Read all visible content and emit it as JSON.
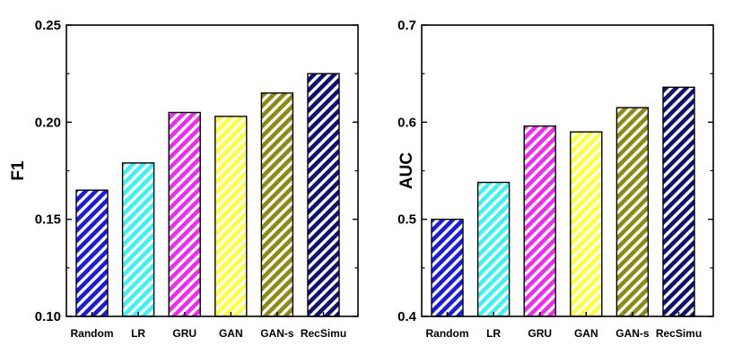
{
  "chart_data": [
    {
      "type": "bar",
      "title": "",
      "xlabel": "",
      "ylabel": "F1",
      "categories": [
        "Random",
        "LR",
        "GRU",
        "GAN",
        "GAN-s",
        "RecSimu"
      ],
      "values": [
        0.165,
        0.179,
        0.205,
        0.203,
        0.215,
        0.225
      ],
      "ylim": [
        0.1,
        0.25
      ],
      "yticks": [
        "0.10",
        "0.15",
        "0.20",
        "0.25"
      ],
      "colors": [
        "#1c1cd8",
        "#3ff2f2",
        "#ef2bef",
        "#ffff3c",
        "#8a8a14",
        "#101070"
      ],
      "pattern": "diagonal-hatch",
      "grid": false,
      "legend": "none"
    },
    {
      "type": "bar",
      "title": "",
      "xlabel": "",
      "ylabel": "AUC",
      "categories": [
        "Random",
        "LR",
        "GRU",
        "GAN",
        "GAN-s",
        "RecSimu"
      ],
      "values": [
        0.5,
        0.538,
        0.596,
        0.59,
        0.615,
        0.636
      ],
      "ylim": [
        0.4,
        0.7
      ],
      "yticks": [
        "0.4",
        "0.5",
        "0.6",
        "0.7"
      ],
      "colors": [
        "#1c1cd8",
        "#3ff2f2",
        "#ef2bef",
        "#ffff3c",
        "#8a8a14",
        "#101070"
      ],
      "pattern": "diagonal-hatch",
      "grid": false,
      "legend": "none"
    }
  ]
}
